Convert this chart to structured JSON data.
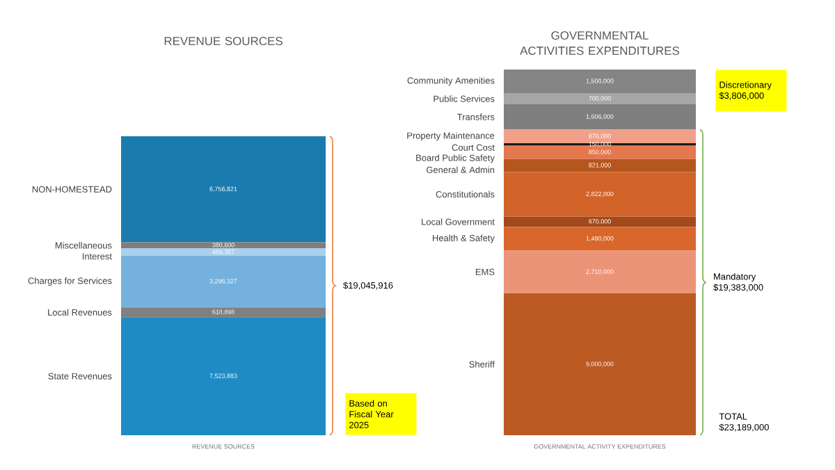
{
  "chart_data": [
    {
      "type": "bar",
      "stacked": true,
      "title": "REVENUE SOURCES",
      "xlabel": "REVENUE SOURCES",
      "categories": [
        null
      ],
      "legend": false,
      "series": [
        {
          "name": "State Revenues",
          "color": "#1f8bc4",
          "values": [
            7523883
          ],
          "value_labels": [
            "7,523,883"
          ]
        },
        {
          "name": "Local Revenues",
          "color": "#808080",
          "values": [
            618898
          ],
          "value_labels": [
            "618,898"
          ]
        },
        {
          "name": "Charges for Services",
          "color": "#74b1de",
          "values": [
            3296327
          ],
          "value_labels": [
            "3,296,327"
          ]
        },
        {
          "name": "Interest",
          "color": "#a9d0ee",
          "values": [
            469387
          ],
          "value_labels": [
            "469,387"
          ]
        },
        {
          "name": "Miscellaneous",
          "color": "#7f7f7f",
          "values": [
            380600
          ],
          "value_labels": [
            "380,600"
          ]
        },
        {
          "name": "NON-HOMESTEAD",
          "color": "#1a7bae",
          "values": [
            6756821
          ],
          "value_labels": [
            "6,756,821"
          ]
        }
      ],
      "annotations": [
        "$19,045,916",
        "Based on Fiscal Year 2025"
      ]
    },
    {
      "type": "bar",
      "stacked": true,
      "title": "GOVERNMENTAL ACTIVITIES EXPENDITURES",
      "xlabel": "GOVERNMENTAL ACTIVITY EXPENDITURES",
      "categories": [
        null
      ],
      "legend": false,
      "series": [
        {
          "name": "Sheriff",
          "color": "#bc5a23",
          "values": [
            9000000
          ],
          "value_labels": [
            "9,000,000"
          ]
        },
        {
          "name": "EMS",
          "color": "#ec9478",
          "values": [
            2710000
          ],
          "value_labels": [
            "2,710,000"
          ]
        },
        {
          "name": "Health & Safety",
          "color": "#d9672c",
          "values": [
            1490000
          ],
          "value_labels": [
            "1,490,000"
          ]
        },
        {
          "name": "Local Government",
          "color": "#a24a1c",
          "values": [
            670000
          ],
          "value_labels": [
            "670,000"
          ]
        },
        {
          "name": "Constitutionals",
          "color": "#d2642a",
          "values": [
            2822000
          ],
          "value_labels": [
            "2,822,000"
          ]
        },
        {
          "name": "General & Admin",
          "color": "#b5561f",
          "values": [
            821000
          ],
          "value_labels": [
            "821,000"
          ]
        },
        {
          "name": "Board Public Safety",
          "color": "#e5784e",
          "values": [
            850000
          ],
          "value_labels": [
            "850,000"
          ]
        },
        {
          "name": "Court Cost",
          "color": "#1a1a1a",
          "values": [
            150000
          ],
          "value_labels": [
            "150,000"
          ]
        },
        {
          "name": "Property Maintenance",
          "color": "#f0a088",
          "values": [
            870000
          ],
          "value_labels": [
            "870,000"
          ]
        },
        {
          "name": "Transfers",
          "color": "#7f7f7f",
          "values": [
            1606000
          ],
          "value_labels": [
            "1,606,000"
          ]
        },
        {
          "name": "Public Services",
          "color": "#a6a6a6",
          "values": [
            700000
          ],
          "value_labels": [
            "700,000"
          ]
        },
        {
          "name": "Community Amenities",
          "color": "#858585",
          "values": [
            1500000
          ],
          "value_labels": [
            "1,500,000"
          ]
        }
      ],
      "annotations": [
        "Mandatory $19,383,000",
        "Discretionary $3,806,000",
        "TOTAL $23,189,000"
      ]
    }
  ]
}
